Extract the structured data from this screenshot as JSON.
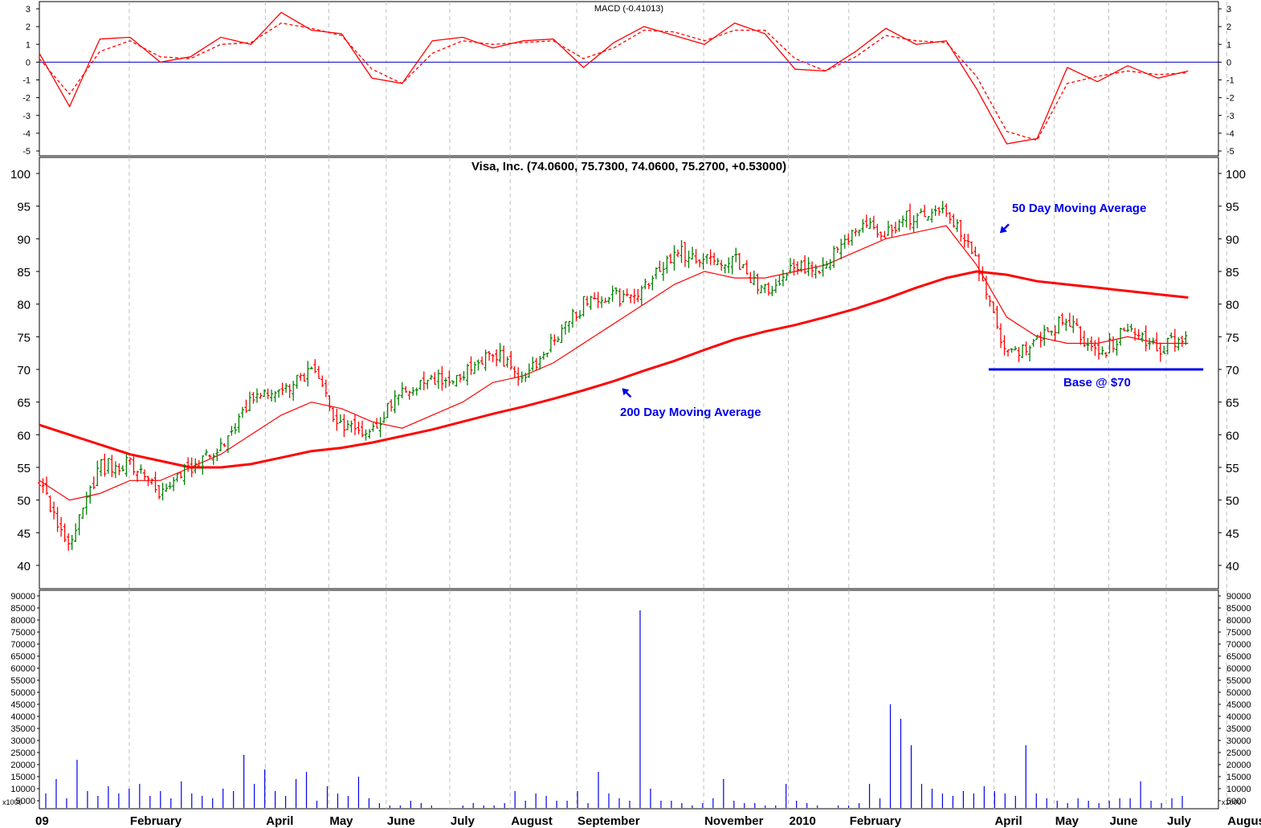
{
  "chart_data": [
    {
      "type": "line",
      "panel": "macd",
      "title": "MACD (-0.41013)",
      "ylim": [
        -5,
        3
      ],
      "y_ticks": [
        "3",
        "2",
        "1",
        "0",
        "-1",
        "-2",
        "-3",
        "-4",
        "-5"
      ],
      "zero_line_color": "#0000cc",
      "x": [
        0,
        10,
        20,
        30,
        40,
        50,
        60,
        70,
        80,
        90,
        100,
        110,
        120,
        130,
        140,
        150,
        160,
        170,
        180,
        190,
        200,
        210,
        220,
        230,
        240,
        250,
        260,
        270,
        280,
        290,
        300,
        310,
        320,
        330,
        340,
        350,
        360,
        370,
        380
      ],
      "series": [
        {
          "name": "",
          "style": "solid",
          "color": "#ff0000",
          "values": [
            0.5,
            -2.5,
            1.3,
            1.4,
            0.0,
            0.3,
            1.4,
            1.0,
            2.8,
            1.8,
            1.6,
            -0.9,
            -1.2,
            1.2,
            1.4,
            0.8,
            1.2,
            1.3,
            -0.3,
            1.1,
            2.0,
            1.5,
            1.0,
            2.2,
            1.6,
            -0.4,
            -0.5,
            0.6,
            1.9,
            1.0,
            1.2,
            -1.5,
            -4.6,
            -4.3,
            -0.3,
            -1.1,
            -0.2,
            -0.9,
            -0.5
          ]
        },
        {
          "name": "",
          "style": "dashed",
          "color": "#ff0000",
          "values": [
            0.2,
            -1.8,
            0.6,
            1.2,
            0.3,
            0.2,
            1.0,
            1.1,
            2.2,
            1.9,
            1.5,
            -0.4,
            -1.2,
            0.5,
            1.2,
            1.0,
            1.1,
            1.2,
            0.2,
            0.8,
            1.8,
            1.7,
            1.2,
            1.8,
            1.8,
            0.2,
            -0.5,
            0.3,
            1.5,
            1.2,
            1.1,
            -0.8,
            -3.9,
            -4.4,
            -1.2,
            -0.8,
            -0.5,
            -0.7,
            -0.6
          ]
        }
      ]
    },
    {
      "type": "bar",
      "panel": "price",
      "title": "Visa, Inc. (74.0600, 75.7300, 74.0600, 75.2700, +0.53000)",
      "ylim": [
        36,
        102
      ],
      "y_ticks": [
        "100",
        "95",
        "90",
        "85",
        "80",
        "75",
        "70",
        "65",
        "60",
        "55",
        "50",
        "45",
        "40"
      ],
      "x": [
        0,
        10,
        20,
        30,
        40,
        50,
        60,
        70,
        80,
        90,
        100,
        110,
        120,
        130,
        140,
        150,
        160,
        170,
        180,
        190,
        200,
        210,
        220,
        230,
        240,
        250,
        260,
        270,
        280,
        290,
        300,
        310,
        320,
        330,
        340,
        350,
        360,
        370,
        380
      ],
      "close": [
        53,
        43,
        55,
        56,
        51,
        55,
        58,
        66,
        67,
        70,
        61,
        60,
        67,
        68,
        69,
        73,
        68,
        75,
        80,
        81,
        82,
        88,
        87,
        87,
        82,
        86,
        86,
        92,
        91,
        94,
        95,
        86,
        72,
        75,
        78,
        72,
        76,
        73,
        75.27
      ],
      "series": [
        {
          "name": "50 Day Moving Average",
          "color": "#ff0000",
          "values": [
            53,
            50,
            51,
            53,
            53,
            55,
            57,
            60,
            63,
            65,
            64,
            62,
            61,
            63,
            65,
            68,
            69,
            71,
            74,
            77,
            80,
            83,
            85,
            84,
            84,
            85,
            86,
            88,
            90,
            91,
            92,
            86,
            78,
            75,
            74,
            74,
            75,
            74,
            74
          ]
        },
        {
          "name": "200 Day Moving Average",
          "color": "#ff0000",
          "values": [
            61.5,
            60.0,
            58.5,
            57.0,
            56.0,
            55.0,
            55.0,
            55.5,
            56.5,
            57.5,
            58.0,
            58.8,
            59.8,
            60.8,
            62.0,
            63.2,
            64.3,
            65.5,
            66.8,
            68.2,
            69.8,
            71.3,
            73.0,
            74.6,
            75.8,
            76.8,
            78.0,
            79.3,
            80.8,
            82.5,
            84.0,
            85.0,
            84.5,
            83.5,
            83.0,
            82.5,
            82.0,
            81.5,
            81.0
          ]
        }
      ],
      "annotations": [
        {
          "text": "50 Day Moving Average",
          "target_x": 318,
          "target_y": 91
        },
        {
          "text": "200 Day Moving Average",
          "target_x": 193,
          "target_y": 67
        },
        {
          "text": "Base @ $70",
          "base_value": 70,
          "x_from": 314,
          "x_to": 385
        }
      ]
    },
    {
      "type": "bar",
      "panel": "volume",
      "ylim": [
        0,
        92000
      ],
      "y_ticks": [
        "90000",
        "85000",
        "80000",
        "75000",
        "70000",
        "65000",
        "60000",
        "55000",
        "50000",
        "45000",
        "40000",
        "35000",
        "30000",
        "25000",
        "20000",
        "15000",
        "10000",
        "5000"
      ],
      "scale_label": "x1000",
      "values": [
        8000,
        14000,
        6000,
        22000,
        9000,
        7000,
        11000,
        8000,
        10000,
        12000,
        7000,
        9000,
        6000,
        13000,
        8000,
        7000,
        6000,
        10000,
        9000,
        24000,
        12000,
        18000,
        9000,
        7000,
        14000,
        17000,
        5000,
        11000,
        8000,
        7000,
        15000,
        6000,
        4000,
        3000,
        3000,
        5000,
        4000,
        3000,
        2000,
        2000,
        3000,
        4000,
        3000,
        3000,
        4000,
        9000,
        5000,
        8000,
        7000,
        5000,
        5000,
        9000,
        4000,
        17000,
        8000,
        6000,
        5000,
        84000,
        10000,
        5000,
        5000,
        4000,
        3000,
        4000,
        6000,
        14000,
        5000,
        4000,
        4000,
        3000,
        3000,
        12000,
        5000,
        4000,
        3000,
        2000,
        3000,
        3000,
        4000,
        12000,
        6000,
        45000,
        39000,
        28000,
        12000,
        10000,
        8000,
        7000,
        9000,
        8000,
        11000,
        9000,
        8000,
        7000,
        28000,
        8000,
        6000,
        5000,
        4000,
        6000,
        5000,
        4000,
        5000,
        6000,
        6000,
        13000,
        5000,
        4000,
        6000,
        7000
      ],
      "bar_color": "#0000ee"
    }
  ],
  "x_axis": {
    "labels": [
      "09",
      "February",
      "April",
      "May",
      "June",
      "July",
      "August",
      "September",
      "November",
      "2010",
      "February",
      "April",
      "May",
      "June",
      "July",
      "August"
    ],
    "label_x": [
      0,
      30,
      75,
      96,
      115,
      136,
      156,
      178,
      220,
      248,
      268,
      316,
      336,
      354,
      373,
      393
    ]
  },
  "colors": {
    "up": "#008000",
    "down": "#ff0000",
    "macd": "#ff0000",
    "moving_average": "#ff0000",
    "annotation": "#0000ee",
    "base_line": "#0000ee",
    "volume": "#0000ee",
    "gridline": "#c0c0c0"
  }
}
